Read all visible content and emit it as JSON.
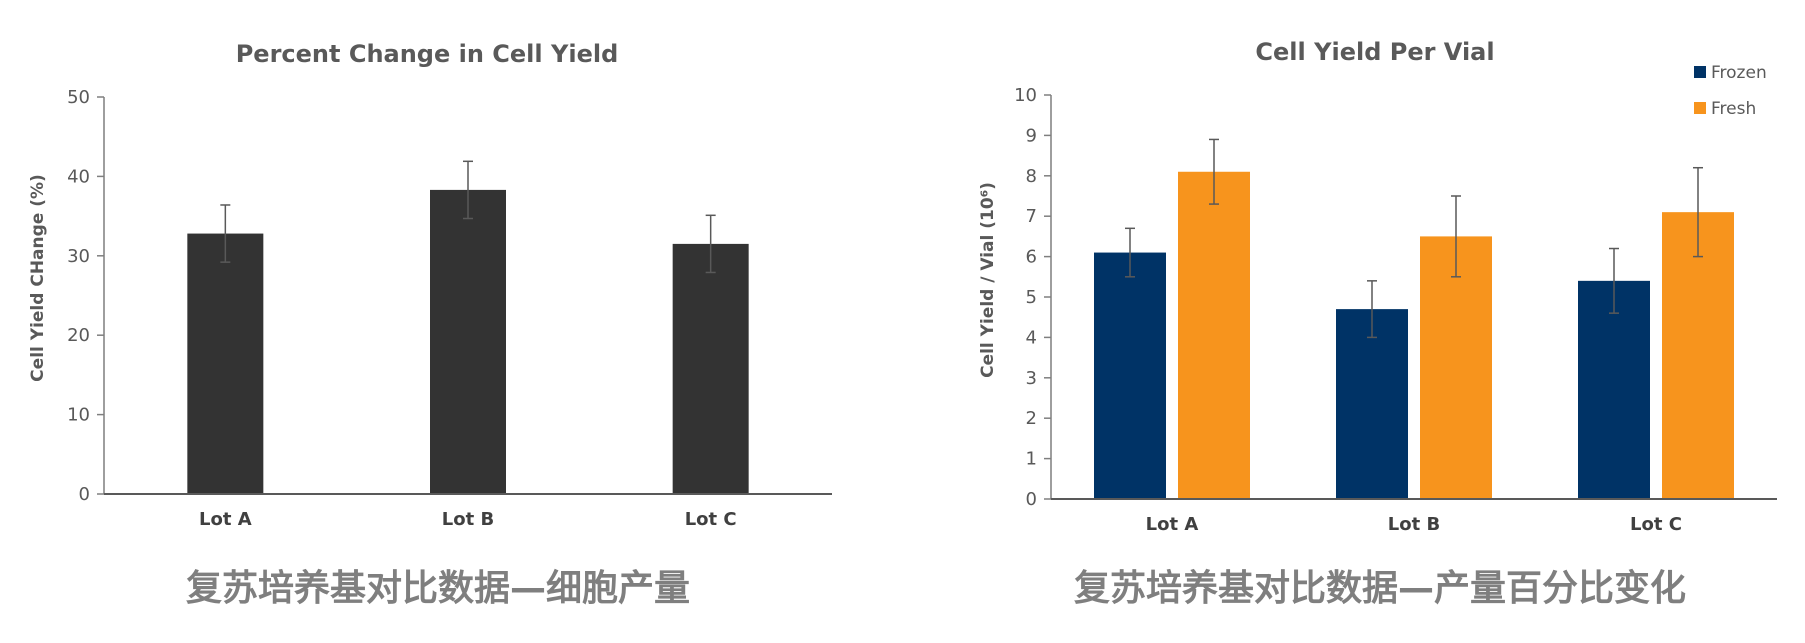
{
  "chart_data": [
    {
      "type": "bar",
      "title": "Percent Change in Cell Yield",
      "ylabel": "Cell Yield CHange (%)",
      "xlabel": "",
      "ylim": [
        0,
        50
      ],
      "yticks": [
        0,
        10,
        20,
        30,
        40,
        50
      ],
      "grid": false,
      "categories": [
        "Lot A",
        "Lot B",
        "Lot C"
      ],
      "series": [
        {
          "color": "#333333",
          "values": [
            32.8,
            38.3,
            31.5
          ],
          "error": [
            3.6,
            3.6,
            3.6
          ]
        }
      ],
      "caption": "复苏培养基对比数据—细胞产量"
    },
    {
      "type": "bar",
      "title": "Cell Yield Per Vial",
      "ylabel": "Cell Yield / Vial (10⁶)",
      "xlabel": "",
      "ylim": [
        0,
        10
      ],
      "yticks": [
        0,
        1,
        2,
        3,
        4,
        5,
        6,
        7,
        8,
        9,
        10
      ],
      "grid": false,
      "legend_position": "top-right",
      "categories": [
        "Lot A",
        "Lot B",
        "Lot C"
      ],
      "series": [
        {
          "name": "Frozen",
          "color": "#003366",
          "values": [
            6.1,
            4.7,
            5.4
          ],
          "error": [
            0.6,
            0.7,
            0.8
          ]
        },
        {
          "name": "Fresh",
          "color": "#f7941d",
          "values": [
            8.1,
            6.5,
            7.1
          ],
          "error": [
            0.8,
            1.0,
            1.1
          ]
        }
      ],
      "caption": "复苏培养基对比数据—产量百分比变化"
    }
  ]
}
